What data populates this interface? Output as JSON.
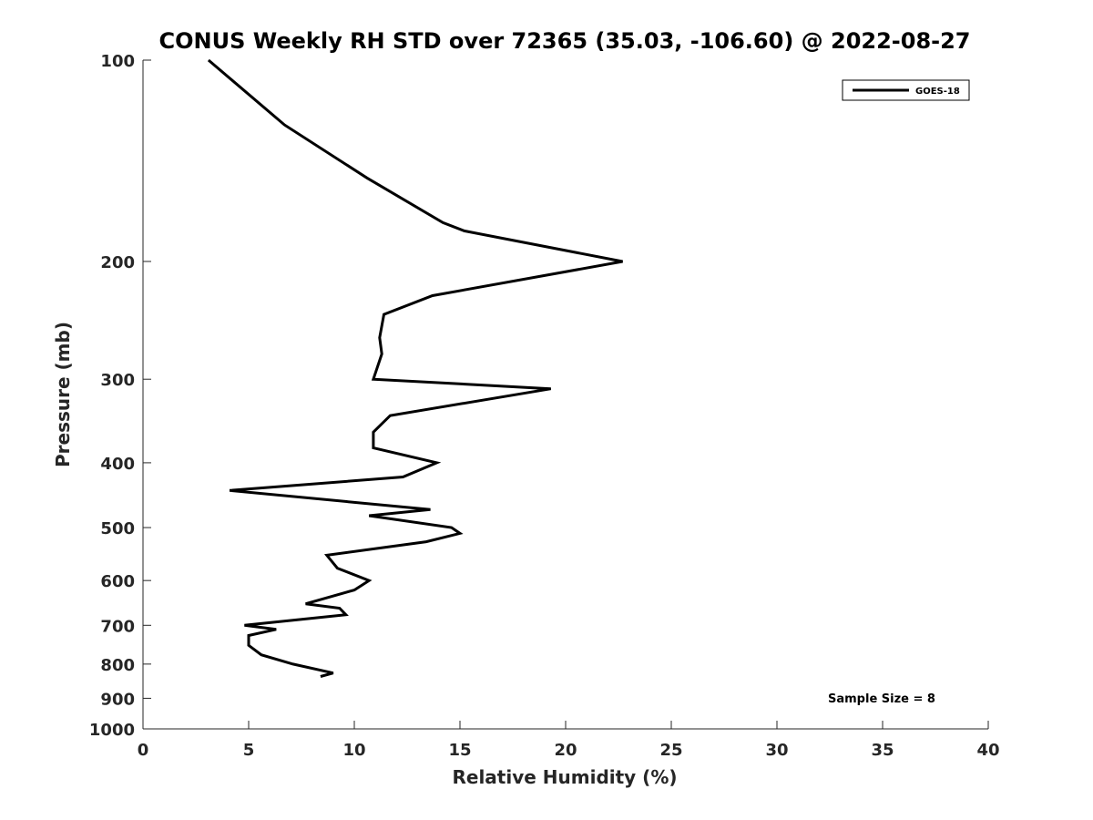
{
  "chart_data": {
    "type": "line",
    "title": "CONUS Weekly RH STD over 72365 (35.03, -106.60) @ 2022-08-27",
    "xlabel": "Relative Humidity (%)",
    "ylabel": "Pressure (mb)",
    "xlim": [
      0,
      40
    ],
    "ylim": [
      100,
      1000
    ],
    "y_scale": "log",
    "y_reversed": true,
    "xticks": [
      0,
      5,
      10,
      15,
      20,
      25,
      30,
      35,
      40
    ],
    "yticks": [
      100,
      200,
      300,
      400,
      500,
      600,
      700,
      800,
      900,
      1000
    ],
    "grid": false,
    "legend_position": "top-right",
    "annotation": "Sample Size = 8",
    "series": [
      {
        "name": "GOES-18",
        "color": "#000000",
        "points": [
          {
            "x": 3.1,
            "p": 100
          },
          {
            "x": 6.7,
            "p": 125
          },
          {
            "x": 10.6,
            "p": 150
          },
          {
            "x": 14.2,
            "p": 175
          },
          {
            "x": 15.2,
            "p": 180
          },
          {
            "x": 22.7,
            "p": 200
          },
          {
            "x": 13.7,
            "p": 225
          },
          {
            "x": 11.4,
            "p": 240
          },
          {
            "x": 11.2,
            "p": 260
          },
          {
            "x": 11.3,
            "p": 275
          },
          {
            "x": 10.9,
            "p": 300
          },
          {
            "x": 19.3,
            "p": 310
          },
          {
            "x": 11.7,
            "p": 340
          },
          {
            "x": 10.9,
            "p": 360
          },
          {
            "x": 10.9,
            "p": 380
          },
          {
            "x": 13.9,
            "p": 400
          },
          {
            "x": 12.3,
            "p": 420
          },
          {
            "x": 4.1,
            "p": 440
          },
          {
            "x": 13.6,
            "p": 470
          },
          {
            "x": 10.7,
            "p": 480
          },
          {
            "x": 14.6,
            "p": 500
          },
          {
            "x": 15.0,
            "p": 510
          },
          {
            "x": 13.4,
            "p": 525
          },
          {
            "x": 8.7,
            "p": 550
          },
          {
            "x": 9.2,
            "p": 575
          },
          {
            "x": 10.7,
            "p": 600
          },
          {
            "x": 10.0,
            "p": 620
          },
          {
            "x": 7.7,
            "p": 650
          },
          {
            "x": 9.3,
            "p": 660
          },
          {
            "x": 9.6,
            "p": 675
          },
          {
            "x": 4.8,
            "p": 700
          },
          {
            "x": 6.3,
            "p": 710
          },
          {
            "x": 5.0,
            "p": 725
          },
          {
            "x": 5.0,
            "p": 750
          },
          {
            "x": 5.6,
            "p": 775
          },
          {
            "x": 7.1,
            "p": 800
          },
          {
            "x": 9.0,
            "p": 825
          },
          {
            "x": 8.4,
            "p": 835
          }
        ]
      }
    ]
  }
}
